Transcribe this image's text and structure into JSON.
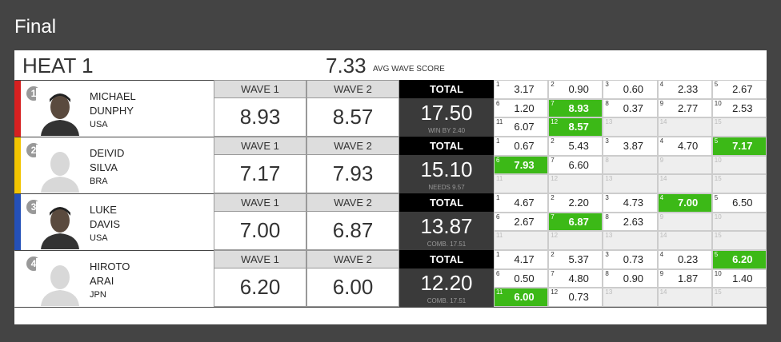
{
  "title": "Final",
  "heat": {
    "name": "HEAT 1",
    "avg": "7.33",
    "avg_label": "AVG WAVE SCORE"
  },
  "columns": {
    "wave1": "WAVE 1",
    "wave2": "WAVE 2",
    "total": "TOTAL"
  },
  "surfers": [
    {
      "seed": 1,
      "first": "MICHAEL",
      "last": "DUNPHY",
      "country": "USA",
      "color": "#d62020",
      "photo": true,
      "wave1": "8.93",
      "wave2": "8.57",
      "total": "17.50",
      "note": "WIN BY 2.40",
      "waves": [
        {
          "n": 1,
          "s": "3.17"
        },
        {
          "n": 2,
          "s": "0.90"
        },
        {
          "n": 3,
          "s": "0.60"
        },
        {
          "n": 4,
          "s": "2.33"
        },
        {
          "n": 5,
          "s": "2.67"
        },
        {
          "n": 6,
          "s": "1.20"
        },
        {
          "n": 7,
          "s": "8.93",
          "best": true
        },
        {
          "n": 8,
          "s": "0.37"
        },
        {
          "n": 9,
          "s": "2.77"
        },
        {
          "n": 10,
          "s": "2.53"
        },
        {
          "n": 11,
          "s": "6.07"
        },
        {
          "n": 12,
          "s": "8.57",
          "best": true
        },
        {
          "n": 13,
          "s": null
        },
        {
          "n": 14,
          "s": null
        },
        {
          "n": 15,
          "s": null
        }
      ]
    },
    {
      "seed": 2,
      "first": "DEIVID",
      "last": "SILVA",
      "country": "BRA",
      "color": "#f2c400",
      "photo": false,
      "wave1": "7.17",
      "wave2": "7.93",
      "total": "15.10",
      "note": "NEEDS 9.57",
      "waves": [
        {
          "n": 1,
          "s": "0.67"
        },
        {
          "n": 2,
          "s": "5.43"
        },
        {
          "n": 3,
          "s": "3.87"
        },
        {
          "n": 4,
          "s": "4.70"
        },
        {
          "n": 5,
          "s": "7.17",
          "best": true
        },
        {
          "n": 6,
          "s": "7.93",
          "best": true
        },
        {
          "n": 7,
          "s": "6.60"
        },
        {
          "n": 8,
          "s": null
        },
        {
          "n": 9,
          "s": null
        },
        {
          "n": 10,
          "s": null
        },
        {
          "n": 11,
          "s": null
        },
        {
          "n": 12,
          "s": null
        },
        {
          "n": 13,
          "s": null
        },
        {
          "n": 14,
          "s": null
        },
        {
          "n": 15,
          "s": null
        }
      ]
    },
    {
      "seed": 3,
      "first": "LUKE",
      "last": "DAVIS",
      "country": "USA",
      "color": "#2450b8",
      "photo": true,
      "wave1": "7.00",
      "wave2": "6.87",
      "total": "13.87",
      "note": "COMB. 17.51",
      "waves": [
        {
          "n": 1,
          "s": "4.67"
        },
        {
          "n": 2,
          "s": "2.20"
        },
        {
          "n": 3,
          "s": "4.73"
        },
        {
          "n": 4,
          "s": "7.00",
          "best": true
        },
        {
          "n": 5,
          "s": "6.50"
        },
        {
          "n": 6,
          "s": "2.67"
        },
        {
          "n": 7,
          "s": "6.87",
          "best": true
        },
        {
          "n": 8,
          "s": "2.63"
        },
        {
          "n": 9,
          "s": null
        },
        {
          "n": 10,
          "s": null
        },
        {
          "n": 11,
          "s": null
        },
        {
          "n": 12,
          "s": null
        },
        {
          "n": 13,
          "s": null
        },
        {
          "n": 14,
          "s": null
        },
        {
          "n": 15,
          "s": null
        }
      ]
    },
    {
      "seed": 4,
      "first": "HIROTO",
      "last": "ARAI",
      "country": "JPN",
      "color": "#ffffff",
      "photo": false,
      "wave1": "6.20",
      "wave2": "6.00",
      "total": "12.20",
      "note": "COMB. 17.51",
      "waves": [
        {
          "n": 1,
          "s": "4.17"
        },
        {
          "n": 2,
          "s": "5.37"
        },
        {
          "n": 3,
          "s": "0.73"
        },
        {
          "n": 4,
          "s": "0.23"
        },
        {
          "n": 5,
          "s": "6.20",
          "best": true
        },
        {
          "n": 6,
          "s": "0.50"
        },
        {
          "n": 7,
          "s": "4.80"
        },
        {
          "n": 8,
          "s": "0.90"
        },
        {
          "n": 9,
          "s": "1.87"
        },
        {
          "n": 10,
          "s": "1.40"
        },
        {
          "n": 11,
          "s": "6.00",
          "best": true
        },
        {
          "n": 12,
          "s": "0.73"
        },
        {
          "n": 13,
          "s": null
        },
        {
          "n": 14,
          "s": null
        },
        {
          "n": 15,
          "s": null
        }
      ]
    }
  ]
}
